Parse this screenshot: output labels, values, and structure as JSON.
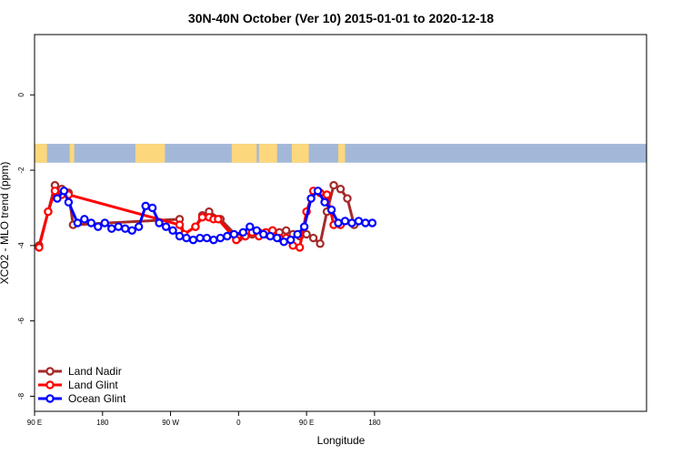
{
  "chart_data": {
    "type": "line",
    "title": "30N-40N October (Ver 10)   2015-01-01 to 2020-12-18",
    "xlabel": "Longitude",
    "ylabel": "XCO2 - MLO trend (ppm)",
    "xlim": [
      -90,
      180
    ],
    "ylim": [
      -8.4,
      1.6
    ],
    "x_ticks": [
      {
        "value": -90,
        "label": "90 E"
      },
      {
        "value": -60,
        "label": "180"
      },
      {
        "value": -30,
        "label": "90 W"
      },
      {
        "value": 0,
        "label": "0"
      },
      {
        "value": 30,
        "label": "90 E"
      },
      {
        "value": 60,
        "label": "180"
      }
    ],
    "y_ticks": [
      {
        "value": 0,
        "label": "0"
      },
      {
        "value": -2,
        "label": "-2"
      },
      {
        "value": -4,
        "label": "-4"
      },
      {
        "value": -6,
        "label": "-6"
      },
      {
        "value": -8,
        "label": "-8"
      }
    ],
    "map_band": {
      "ymin": -1.8,
      "ymax": -1.3,
      "ocean_color": "#a3b8d8",
      "land_color": "#fcd77c"
    },
    "legend_position": "bottom-left",
    "series": [
      {
        "name": "Land Nadir",
        "color": "#a52a2a",
        "x": [
          -88,
          -84,
          -81,
          -78,
          -75,
          -73,
          -26,
          -24,
          -19,
          -16,
          -13,
          -8,
          0,
          3,
          6,
          9,
          12,
          15,
          18,
          21,
          24,
          27,
          30,
          33,
          36,
          39,
          42,
          45,
          48,
          51
        ],
        "y": [
          -4.0,
          -3.1,
          -2.4,
          -2.5,
          -2.6,
          -3.45,
          -3.3,
          -3.7,
          -3.5,
          -3.2,
          -3.1,
          -3.3,
          -3.8,
          -3.75,
          -3.7,
          -3.65,
          -3.7,
          -3.6,
          -3.65,
          -3.6,
          -3.7,
          -3.75,
          -3.7,
          -3.8,
          -3.95,
          -3.1,
          -2.4,
          -2.5,
          -2.75,
          -3.45
        ]
      },
      {
        "name": "Land Glint",
        "color": "#ff0000",
        "x": [
          -88,
          -84,
          -81,
          -78,
          -75,
          -26,
          -24,
          -19,
          -16,
          -13,
          -11,
          -9,
          -1,
          3,
          6,
          9,
          12,
          15,
          18,
          21,
          24,
          27,
          30,
          33,
          36,
          39,
          42,
          45
        ],
        "y": [
          -4.05,
          -3.1,
          -2.55,
          -2.65,
          -2.65,
          -3.45,
          -3.7,
          -3.5,
          -3.25,
          -3.25,
          -3.3,
          -3.3,
          -3.85,
          -3.75,
          -3.65,
          -3.75,
          -3.65,
          -3.6,
          -3.8,
          -3.8,
          -4.0,
          -4.05,
          -3.1,
          -2.55,
          -2.6,
          -2.65,
          -3.45,
          -3.45
        ]
      },
      {
        "name": "Ocean Glint",
        "color": "#0000ff",
        "x": [
          -80,
          -77,
          -75,
          -71,
          -68,
          -65,
          -62,
          -59,
          -56,
          -53,
          -50,
          -47,
          -44,
          -41,
          -38,
          -35,
          -32,
          -29,
          -26,
          -23,
          -20,
          -17,
          -14,
          -11,
          -8,
          -5,
          -2,
          2,
          5,
          8,
          11,
          14,
          17,
          20,
          23,
          26,
          29,
          32,
          35,
          38,
          41,
          44,
          47,
          50,
          53,
          56,
          59
        ],
        "y": [
          -2.75,
          -2.55,
          -2.85,
          -3.4,
          -3.3,
          -3.4,
          -3.5,
          -3.4,
          -3.55,
          -3.5,
          -3.55,
          -3.6,
          -3.5,
          -2.95,
          -3.0,
          -3.4,
          -3.5,
          -3.6,
          -3.75,
          -3.8,
          -3.85,
          -3.8,
          -3.8,
          -3.85,
          -3.8,
          -3.75,
          -3.7,
          -3.65,
          -3.5,
          -3.6,
          -3.7,
          -3.75,
          -3.8,
          -3.9,
          -3.85,
          -3.7,
          -3.5,
          -2.75,
          -2.55,
          -2.85,
          -3.05,
          -3.4,
          -3.35,
          -3.4,
          -3.35,
          -3.4,
          -3.4
        ]
      }
    ]
  }
}
